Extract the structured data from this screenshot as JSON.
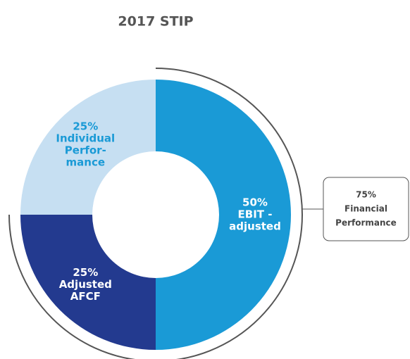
{
  "chart_data": {
    "type": "donut",
    "title": "2017 STIP",
    "categories": [
      [
        "EBIT -",
        "adjusted"
      ],
      [
        "Adjusted",
        "AFCF"
      ],
      [
        "Individual",
        "Perfor-",
        "mance"
      ]
    ],
    "values": [
      50,
      25,
      25
    ],
    "value_labels": [
      "50%",
      "25%",
      "25%"
    ],
    "colors": [
      "#1a9ad6",
      "#233a8f",
      "#c6dff2"
    ],
    "label_colors": [
      "#ffffff",
      "#ffffff",
      "#1a9ad6"
    ],
    "annotation": {
      "value": 75,
      "label": "75%",
      "lines": [
        "Financial",
        "Performance"
      ]
    }
  }
}
